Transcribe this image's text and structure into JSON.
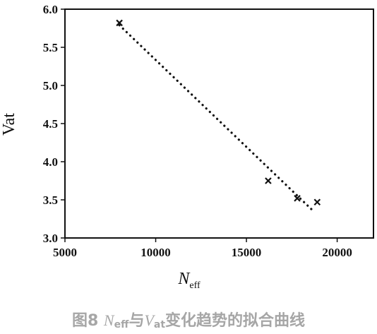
{
  "chart_data": {
    "type": "scatter",
    "xlim": [
      5000,
      22000
    ],
    "ylim": [
      3.0,
      6.0
    ],
    "x_ticks": [
      5000,
      10000,
      15000,
      20000
    ],
    "x_tick_labels": [
      "5000",
      "10000",
      "15000",
      "20000"
    ],
    "y_ticks": [
      3.0,
      3.5,
      4.0,
      4.5,
      5.0,
      5.5,
      6.0
    ],
    "y_tick_labels": [
      "3.0",
      "3.5",
      "4.0",
      "4.5",
      "5.0",
      "5.5",
      "6.0"
    ],
    "xlabel": {
      "main": "N",
      "sub": "eff"
    },
    "ylabel": "Vat",
    "series": [
      {
        "marker": "x",
        "color": "#111111",
        "points": [
          {
            "x": 8000,
            "y": 5.82
          },
          {
            "x": 16200,
            "y": 3.75
          },
          {
            "x": 17800,
            "y": 3.52
          },
          {
            "x": 18900,
            "y": 3.47
          }
        ]
      }
    ],
    "fit_line": {
      "style": "dotted",
      "color": "#111111",
      "points": [
        {
          "x": 8000,
          "y": 5.79
        },
        {
          "x": 18700,
          "y": 3.35
        }
      ]
    },
    "grid": false,
    "legend": "none"
  },
  "caption": {
    "prefix": "图8 ",
    "n": "N",
    "n_sub": "eff",
    "mid": "与",
    "v": "V",
    "v_sub": "at",
    "suffix": "变化趋势的拟合曲线"
  }
}
